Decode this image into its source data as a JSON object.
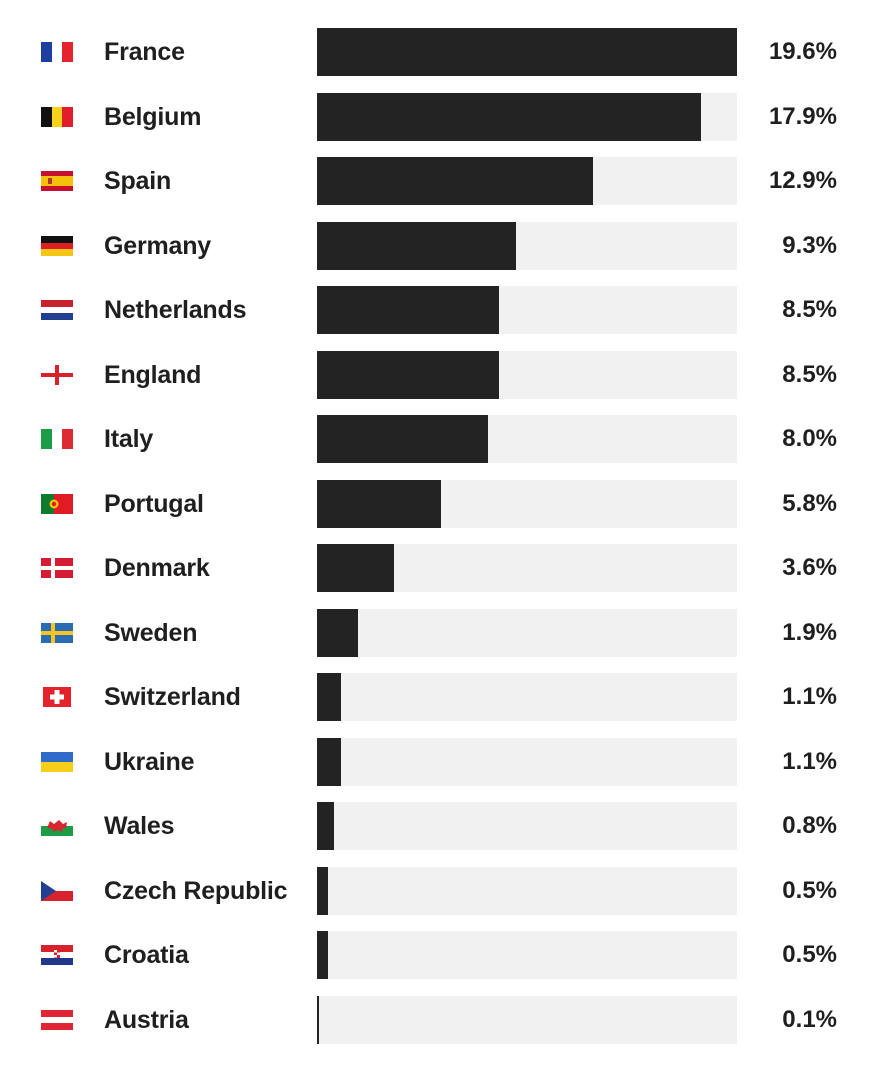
{
  "chart_data": {
    "type": "bar",
    "orientation": "horizontal",
    "unit": "%",
    "xlim": [
      0,
      19.6
    ],
    "bar_color": "#232323",
    "track_color": "#f1f1f1",
    "categories": [
      "France",
      "Belgium",
      "Spain",
      "Germany",
      "Netherlands",
      "England",
      "Italy",
      "Portugal",
      "Denmark",
      "Sweden",
      "Switzerland",
      "Ukraine",
      "Wales",
      "Czech Republic",
      "Croatia",
      "Austria"
    ],
    "values": [
      19.6,
      17.9,
      12.9,
      9.3,
      8.5,
      8.5,
      8.0,
      5.8,
      3.6,
      1.9,
      1.1,
      1.1,
      0.8,
      0.5,
      0.5,
      0.1
    ],
    "value_labels": [
      "19.6%",
      "17.9%",
      "12.9%",
      "9.3%",
      "8.5%",
      "8.5%",
      "8.0%",
      "5.8%",
      "3.6%",
      "1.9%",
      "1.1%",
      "1.1%",
      "0.8%",
      "0.5%",
      "0.5%",
      "0.1%"
    ],
    "flags": [
      "france-flag-icon",
      "belgium-flag-icon",
      "spain-flag-icon",
      "germany-flag-icon",
      "netherlands-flag-icon",
      "england-flag-icon",
      "italy-flag-icon",
      "portugal-flag-icon",
      "denmark-flag-icon",
      "sweden-flag-icon",
      "switzerland-flag-icon",
      "ukraine-flag-icon",
      "wales-flag-icon",
      "czech-republic-flag-icon",
      "croatia-flag-icon",
      "austria-flag-icon"
    ]
  }
}
